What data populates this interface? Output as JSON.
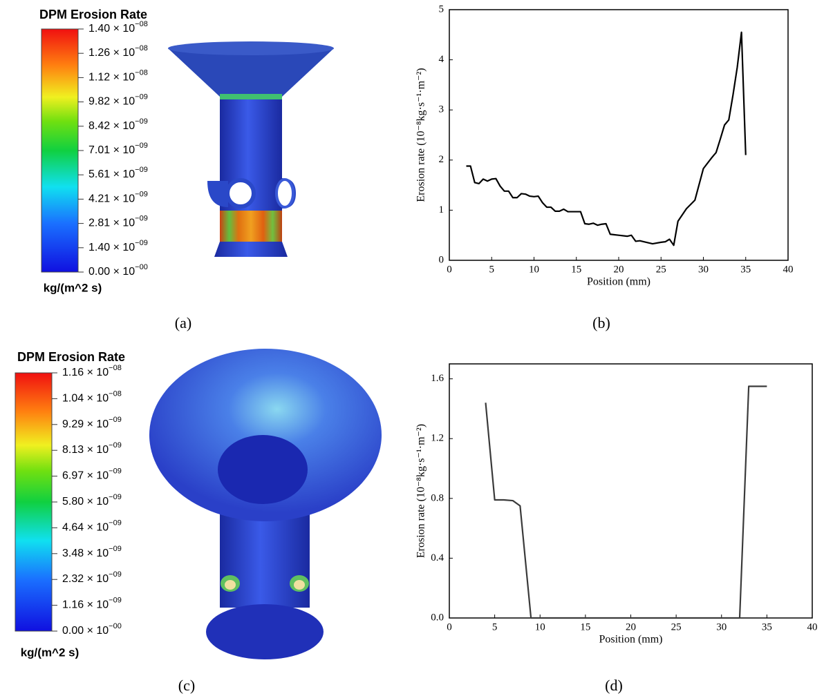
{
  "colorbars": [
    {
      "title": "DPM Erosion Rate",
      "unit": "kg/(m^2 s)",
      "labels": [
        {
          "base": "1.40 × 10",
          "sup": "−08"
        },
        {
          "base": "1.26 × 10",
          "sup": "−08"
        },
        {
          "base": "1.12 × 10",
          "sup": "−08"
        },
        {
          "base": "9.82 × 10",
          "sup": "−09"
        },
        {
          "base": "8.42 × 10",
          "sup": "−09"
        },
        {
          "base": "7.01 × 10",
          "sup": "−09"
        },
        {
          "base": "5.61 × 10",
          "sup": "−09"
        },
        {
          "base": "4.21 × 10",
          "sup": "−09"
        },
        {
          "base": "2.81 × 10",
          "sup": "−09"
        },
        {
          "base": "1.40 × 10",
          "sup": "−09"
        },
        {
          "base": "0.00 × 10",
          "sup": "−00"
        }
      ]
    },
    {
      "title": "DPM Erosion Rate",
      "unit": "kg/(m^2 s)",
      "labels": [
        {
          "base": "1.16 × 10",
          "sup": "−08"
        },
        {
          "base": "1.04 × 10",
          "sup": "−08"
        },
        {
          "base": "9.29 × 10",
          "sup": "−09"
        },
        {
          "base": "8.13 × 10",
          "sup": "−09"
        },
        {
          "base": "6.97 × 10",
          "sup": "−09"
        },
        {
          "base": "5.80 × 10",
          "sup": "−09"
        },
        {
          "base": "4.64 × 10",
          "sup": "−09"
        },
        {
          "base": "3.48 × 10",
          "sup": "−09"
        },
        {
          "base": "2.32 × 10",
          "sup": "−09"
        },
        {
          "base": "1.16 × 10",
          "sup": "−09"
        },
        {
          "base": "0.00 × 10",
          "sup": "−00"
        }
      ]
    }
  ],
  "captions": [
    "(a)",
    "(b)",
    "(c)",
    "(d)"
  ],
  "chart_data": [
    {
      "type": "line",
      "x_label": "Position (mm)",
      "y_label": "Erosion rate (10⁻⁸kg·s⁻¹·m⁻²)",
      "x": [
        2,
        2.5,
        3,
        3.5,
        4,
        4.5,
        5,
        5.5,
        6,
        6.5,
        7,
        7.5,
        8,
        8.5,
        9,
        9.5,
        10,
        10.5,
        11,
        11.5,
        12,
        12.5,
        13,
        13.5,
        14,
        15,
        15.5,
        16,
        16.5,
        17,
        17.5,
        18,
        18.5,
        19,
        20,
        21,
        21.5,
        22,
        22.5,
        23,
        24,
        25,
        25.5,
        26,
        26.5,
        27,
        28,
        29,
        30,
        31,
        31.5,
        32,
        32.5,
        33,
        33.5,
        34,
        34.5,
        35
      ],
      "series": [
        {
          "color": "#000000",
          "values": [
            1.88,
            1.88,
            1.55,
            1.53,
            1.62,
            1.58,
            1.62,
            1.63,
            1.48,
            1.38,
            1.38,
            1.25,
            1.25,
            1.33,
            1.32,
            1.28,
            1.27,
            1.28,
            1.15,
            1.06,
            1.06,
            0.98,
            0.98,
            1.02,
            0.97,
            0.97,
            0.97,
            0.73,
            0.72,
            0.74,
            0.7,
            0.72,
            0.73,
            0.52,
            0.5,
            0.48,
            0.5,
            0.38,
            0.39,
            0.37,
            0.33,
            0.36,
            0.37,
            0.42,
            0.3,
            0.78,
            1.03,
            1.2,
            1.83,
            2.05,
            2.15,
            2.42,
            2.7,
            2.8,
            3.3,
            3.85,
            4.55,
            2.1
          ]
        }
      ],
      "xlim": [
        0,
        40
      ],
      "ylim": [
        0,
        5
      ],
      "xticks": [
        0,
        5,
        10,
        15,
        20,
        25,
        30,
        35,
        40
      ],
      "yticks": [
        0,
        1,
        2,
        3,
        4,
        5
      ]
    },
    {
      "type": "line",
      "x_label": "Position (mm)",
      "y_label": "Erosion rate (10⁻⁸kg·s⁻¹·m⁻²)",
      "x": [
        4,
        5,
        6,
        7,
        7.8,
        9,
        32,
        33,
        35
      ],
      "series": [
        {
          "color": "#3a3a3a",
          "values": [
            1.44,
            0.79,
            0.79,
            0.785,
            0.75,
            0,
            0,
            1.55,
            1.55
          ]
        }
      ],
      "xlim": [
        0,
        40
      ],
      "ylim": [
        0,
        1.7
      ],
      "xticks": [
        0,
        5,
        10,
        15,
        20,
        25,
        30,
        35,
        40
      ],
      "yticks": [
        {
          "value": 0,
          "label": "0.0"
        },
        0.4,
        0.8,
        1.2,
        1.6
      ]
    }
  ]
}
